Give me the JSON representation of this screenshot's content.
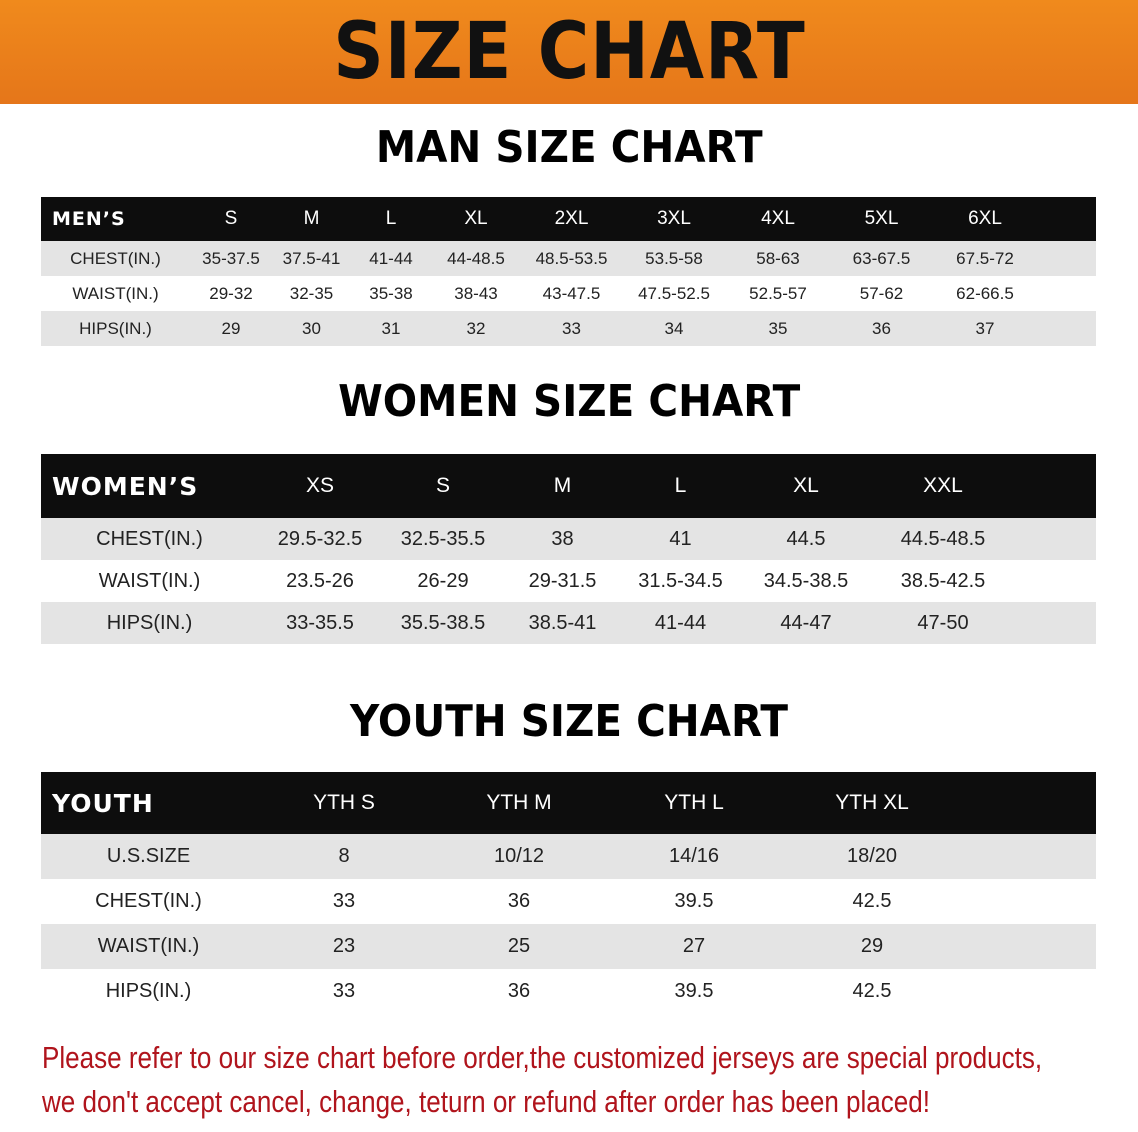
{
  "banner_title": "SIZE CHART",
  "men": {
    "title": "MAN SIZE CHART",
    "header": [
      "MEN’S",
      "S",
      "M",
      "L",
      "XL",
      "2XL",
      "3XL",
      "4XL",
      "5XL",
      "6XL"
    ],
    "rows": [
      [
        "CHEST(IN.)",
        "35-37.5",
        "37.5-41",
        "41-44",
        "44-48.5",
        "48.5-53.5",
        "53.5-58",
        "58-63",
        "63-67.5",
        "67.5-72"
      ],
      [
        "WAIST(IN.)",
        "29-32",
        "32-35",
        "35-38",
        "38-43",
        "43-47.5",
        "47.5-52.5",
        "52.5-57",
        "57-62",
        "62-66.5"
      ],
      [
        "HIPS(IN.)",
        "29",
        "30",
        "31",
        "32",
        "33",
        "34",
        "35",
        "36",
        "37"
      ]
    ]
  },
  "women": {
    "title": "WOMEN SIZE CHART",
    "header": [
      "WOMEN’S",
      "XS",
      "S",
      "M",
      "L",
      "XL",
      "XXL"
    ],
    "rows": [
      [
        "CHEST(IN.)",
        "29.5-32.5",
        "32.5-35.5",
        "38",
        "41",
        "44.5",
        "44.5-48.5"
      ],
      [
        "WAIST(IN.)",
        "23.5-26",
        "26-29",
        "29-31.5",
        "31.5-34.5",
        "34.5-38.5",
        "38.5-42.5"
      ],
      [
        "HIPS(IN.)",
        "33-35.5",
        "35.5-38.5",
        "38.5-41",
        "41-44",
        "44-47",
        "47-50"
      ]
    ]
  },
  "youth": {
    "title": "YOUTH SIZE CHART",
    "header": [
      "YOUTH",
      "YTH S",
      "YTH M",
      "YTH L",
      "YTH XL"
    ],
    "rows": [
      [
        "U.S.SIZE",
        "8",
        "10/12",
        "14/16",
        "18/20"
      ],
      [
        "CHEST(IN.)",
        "33",
        "36",
        "39.5",
        "42.5"
      ],
      [
        "WAIST(IN.)",
        "23",
        "25",
        "27",
        "29"
      ],
      [
        "HIPS(IN.)",
        "33",
        "36",
        "39.5",
        "42.5"
      ]
    ]
  },
  "note": {
    "line1": "Please refer to our size chart before order,the customized jerseys are special products,",
    "line2": "we don't accept cancel, change, teturn or refund after order has been placed!"
  },
  "colors": {
    "banner": "#ec7f1b",
    "header_row": "#0d0d0d",
    "stripe": "#e4e4e4",
    "note_text": "#b0141c"
  }
}
